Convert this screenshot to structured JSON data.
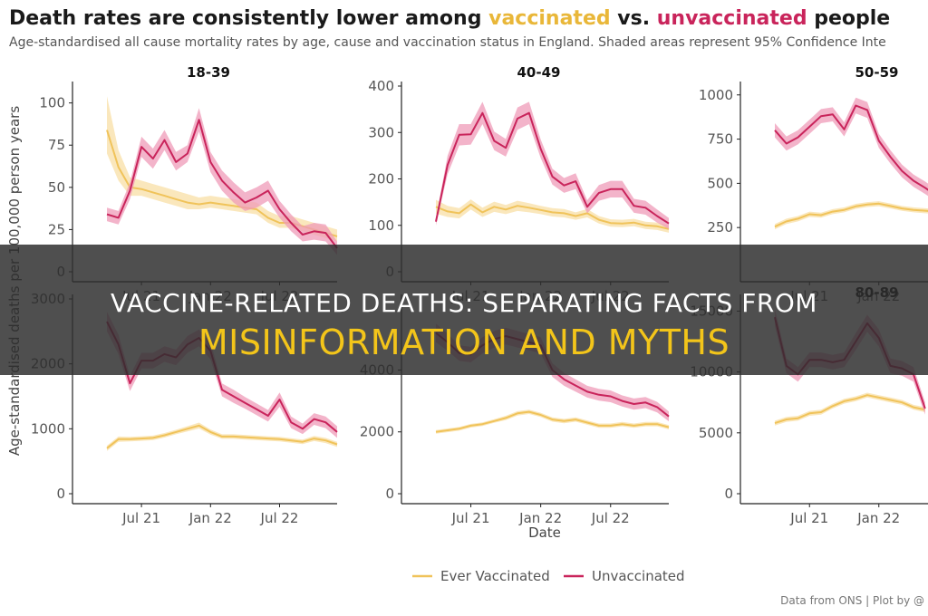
{
  "title": {
    "part1": "Death rates are consistently lower among ",
    "part2": "vaccinated",
    "part3": " vs. ",
    "part4": "unvaccinated",
    "part5": " people"
  },
  "subtitle": "Age-standardised all cause mortality rates by age, cause and vaccination status in England. Shaded areas represent 95% Confidence Inte",
  "source": "Data from ONS | Plot by @",
  "overlay": {
    "line1": "VACCINE-RELATED DEATHS: SEPARATING FACTS FROM",
    "line2": "MISINFORMATION AND MYTHS"
  },
  "colors": {
    "vaccinated": "#f0c35a",
    "unvaccinated": "#c9245b",
    "vaccinated_band": "#f8dfa5",
    "unvaccinated_band": "#ef9bb8"
  },
  "chart_data": {
    "type": "line",
    "ylabel": "Age-standardised deaths per 100,000 person years",
    "xlabel": "Date",
    "x_tick_labels": [
      "Jul 21",
      "Jan 22",
      "Jul 22"
    ],
    "legend": [
      "Ever Vaccinated",
      "Unvaccinated"
    ],
    "legend_position": "bottom",
    "grid": false,
    "x": [
      "2021-04",
      "2021-05",
      "2021-06",
      "2021-07",
      "2021-08",
      "2021-09",
      "2021-10",
      "2021-11",
      "2021-12",
      "2022-01",
      "2022-02",
      "2022-03",
      "2022-04",
      "2022-05",
      "2022-06",
      "2022-07",
      "2022-08",
      "2022-09",
      "2022-10",
      "2022-11",
      "2022-12"
    ],
    "panels": [
      {
        "title": "18-39",
        "ylim": [
          0,
          110
        ],
        "yticks": [
          0,
          25,
          50,
          75,
          100
        ],
        "series": [
          {
            "name": "Ever Vaccinated",
            "values": [
              84,
              62,
              50,
              49,
              47,
              45,
              43,
              41,
              40,
              41,
              40,
              39,
              38,
              37,
              32,
              29,
              29,
              27,
              25,
              23,
              21
            ],
            "lower": [
              70,
              54,
              45,
              45,
              43,
              41,
              39,
              37,
              37,
              38,
              37,
              36,
              35,
              34,
              29,
              26,
              26,
              24,
              22,
              20,
              18
            ],
            "upper": [
              104,
              72,
              56,
              54,
              52,
              50,
              48,
              46,
              44,
              45,
              44,
              43,
              42,
              41,
              36,
              33,
              33,
              31,
              29,
              27,
              25
            ]
          },
          {
            "name": "Unvaccinated",
            "values": [
              34,
              32,
              48,
              74,
              67,
              78,
              65,
              70,
              90,
              65,
              54,
              47,
              41,
              44,
              48,
              37,
              29,
              22,
              24,
              23,
              14
            ],
            "lower": [
              30,
              28,
              43,
              68,
              61,
              72,
              60,
              65,
              83,
              59,
              48,
              41,
              36,
              38,
              42,
              32,
              24,
              18,
              19,
              18,
              10
            ],
            "upper": [
              38,
              36,
              53,
              80,
              73,
              84,
              71,
              75,
              97,
              71,
              60,
              53,
              47,
              50,
              54,
              42,
              34,
              27,
              29,
              28,
              18
            ]
          }
        ]
      },
      {
        "title": "40-49",
        "ylim": [
          0,
          400
        ],
        "yticks": [
          0,
          100,
          200,
          300,
          400
        ],
        "series": [
          {
            "name": "Ever Vaccinated",
            "values": [
              140,
              130,
              126,
              145,
              128,
              140,
              134,
              142,
              138,
              133,
              128,
              126,
              120,
              126,
              112,
              105,
              104,
              106,
              100,
              98,
              92
            ],
            "lower": [
              125,
              118,
              115,
              134,
              118,
              129,
              124,
              131,
              128,
              124,
              119,
              117,
              112,
              117,
              104,
              97,
              96,
              98,
              92,
              90,
              84
            ],
            "upper": [
              155,
              142,
              137,
              156,
              138,
              151,
              144,
              153,
              148,
              142,
              137,
              135,
              128,
              135,
              120,
              113,
              112,
              114,
              108,
              106,
              100
            ]
          },
          {
            "name": "Unvaccinated",
            "values": [
              108,
              230,
              295,
              296,
              342,
              282,
              267,
              330,
              342,
              265,
              205,
              186,
              195,
              140,
              170,
              178,
              178,
              142,
              138,
              120,
              104
            ],
            "lower": [
              100,
              210,
              272,
              274,
              318,
              262,
              248,
              306,
              318,
              245,
              188,
              170,
              178,
              126,
              153,
              160,
              160,
              127,
              123,
              106,
              92
            ],
            "upper": [
              116,
              250,
              318,
              318,
              366,
              302,
              286,
              354,
              366,
              285,
              222,
              202,
              212,
              154,
              187,
              196,
              196,
              157,
              153,
              134,
              116
            ]
          }
        ]
      },
      {
        "title": "50-59",
        "ylim": [
          0,
          1050
        ],
        "yticks": [
          250,
          500,
          750,
          1000
        ],
        "series": [
          {
            "name": "Ever Vaccinated",
            "values": [
              255,
              285,
              300,
              325,
              320,
              340,
              350,
              370,
              380,
              385,
              372,
              358,
              350,
              345,
              340,
              332
            ],
            "lower": [
              240,
              270,
              285,
              310,
              306,
              326,
              336,
              356,
              366,
              371,
              358,
              344,
              336,
              331,
              326,
              318
            ],
            "upper": [
              270,
              300,
              315,
              340,
              334,
              354,
              364,
              384,
              394,
              399,
              386,
              372,
              364,
              359,
              354,
              346
            ]
          },
          {
            "name": "Unvaccinated",
            "values": [
              800,
              725,
              760,
              820,
              880,
              890,
              805,
              940,
              915,
              740,
              650,
              570,
              515,
              475,
              430,
              370
            ],
            "lower": [
              760,
              685,
              720,
              780,
              840,
              850,
              765,
              895,
              870,
              700,
              612,
              534,
              480,
              440,
              396,
              336
            ],
            "upper": [
              840,
              765,
              800,
              860,
              920,
              930,
              845,
              985,
              960,
              780,
              688,
              606,
              550,
              510,
              464,
              404
            ]
          }
        ]
      },
      {
        "title": "",
        "ylim": [
          0,
          3000
        ],
        "yticks": [
          0,
          1000,
          2000,
          3000
        ],
        "series": [
          {
            "name": "Ever Vaccinated",
            "values": [
              700,
              840,
              840,
              850,
              860,
              900,
              950,
              1000,
              1050,
              950,
              880,
              880,
              870,
              860,
              850,
              840,
              820,
              800,
              850,
              820,
              760
            ],
            "lower": [
              660,
              800,
              805,
              815,
              825,
              865,
              915,
              960,
              1005,
              910,
              845,
              845,
              835,
              825,
              815,
              805,
              785,
              765,
              810,
              780,
              720
            ],
            "upper": [
              740,
              880,
              875,
              885,
              895,
              935,
              985,
              1040,
              1095,
              990,
              915,
              915,
              905,
              895,
              885,
              875,
              855,
              835,
              890,
              860,
              800
            ]
          },
          {
            "name": "Unvaccinated",
            "values": [
              2650,
              2300,
              1700,
              2050,
              2050,
              2150,
              2100,
              2300,
              2400,
              2200,
              1600,
              1500,
              1400,
              1300,
              1200,
              1450,
              1100,
              1000,
              1150,
              1100,
              950
            ],
            "lower": [
              2500,
              2150,
              1580,
              1930,
              1930,
              2030,
              1980,
              2170,
              2270,
              2070,
              1500,
              1400,
              1310,
              1210,
              1110,
              1340,
              1010,
              920,
              1060,
              1010,
              860
            ],
            "upper": [
              2800,
              2450,
              1820,
              2170,
              2170,
              2270,
              2220,
              2430,
              2530,
              2330,
              1700,
              1600,
              1490,
              1390,
              1290,
              1560,
              1190,
              1080,
              1240,
              1190,
              1040
            ]
          }
        ]
      },
      {
        "title": "",
        "ylim": [
          0,
          6300
        ],
        "yticks": [
          0,
          2000,
          4000
        ],
        "series": [
          {
            "name": "Ever Vaccinated",
            "values": [
              2000,
              2050,
              2100,
              2200,
              2250,
              2350,
              2450,
              2600,
              2650,
              2550,
              2400,
              2350,
              2400,
              2300,
              2200,
              2200,
              2250,
              2200,
              2250,
              2250,
              2150
            ],
            "lower": [
              1940,
              1990,
              2040,
              2140,
              2190,
              2290,
              2380,
              2530,
              2580,
              2480,
              2330,
              2280,
              2330,
              2230,
              2130,
              2130,
              2180,
              2130,
              2180,
              2180,
              2080
            ],
            "upper": [
              2060,
              2110,
              2160,
              2260,
              2310,
              2410,
              2520,
              2670,
              2720,
              2620,
              2470,
              2420,
              2470,
              2370,
              2270,
              2270,
              2320,
              2270,
              2320,
              2320,
              2220
            ]
          },
          {
            "name": "Unvaccinated",
            "values": [
              5200,
              4900,
              4550,
              4500,
              4800,
              5000,
              5100,
              5000,
              4900,
              4800,
              4000,
              3700,
              3500,
              3300,
              3200,
              3150,
              3000,
              2900,
              2950,
              2800,
              2500
            ],
            "lower": [
              4900,
              4620,
              4300,
              4250,
              4540,
              4730,
              4830,
              4730,
              4640,
              4540,
              3780,
              3490,
              3300,
              3110,
              3010,
              2960,
              2820,
              2720,
              2770,
              2630,
              2340
            ],
            "upper": [
              5500,
              5180,
              4800,
              4750,
              5060,
              5270,
              5370,
              5270,
              5160,
              5060,
              4220,
              3910,
              3700,
              3490,
              3390,
              3340,
              3180,
              3080,
              3130,
              2970,
              2660
            ]
          }
        ]
      },
      {
        "title": "80-89",
        "ylim": [
          0,
          16000
        ],
        "yticks": [
          0,
          5000,
          10000,
          15000
        ],
        "series": [
          {
            "name": "Ever Vaccinated",
            "values": [
              5800,
              6100,
              6200,
              6600,
              6700,
              7200,
              7600,
              7800,
              8100,
              7900,
              7700,
              7500,
              7100,
              6900
            ],
            "lower": [
              5600,
              5900,
              6000,
              6400,
              6500,
              7000,
              7400,
              7600,
              7900,
              7700,
              7500,
              7300,
              6900,
              6700
            ],
            "upper": [
              6000,
              6300,
              6400,
              6800,
              6900,
              7400,
              7800,
              8000,
              8300,
              8100,
              7900,
              7700,
              7300,
              7100
            ]
          },
          {
            "name": "Unvaccinated",
            "values": [
              14500,
              10500,
              9800,
              11000,
              11000,
              10800,
              11000,
              12500,
              14000,
              12800,
              10500,
              10300,
              9800,
              7000
            ],
            "lower": [
              13800,
              9900,
              9200,
              10400,
              10400,
              10200,
              10400,
              11800,
              13300,
              12100,
              9900,
              9700,
              9200,
              6500
            ],
            "upper": [
              15200,
              11100,
              10400,
              11600,
              11600,
              11400,
              11600,
              13200,
              14700,
              13500,
              11100,
              10900,
              10400,
              7500
            ]
          }
        ]
      }
    ]
  }
}
